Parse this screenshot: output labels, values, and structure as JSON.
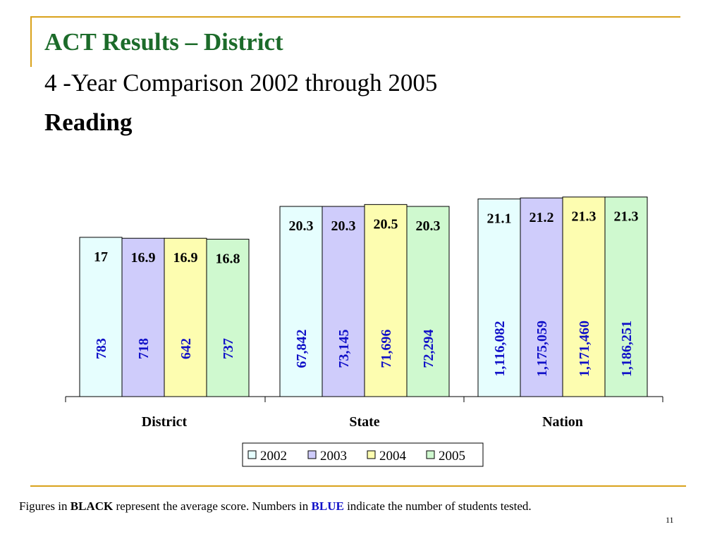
{
  "slide": {
    "title": "ACT Results – District",
    "subtitle": "4 -Year Comparison 2002 through 2005",
    "section": "Reading",
    "page_number": "11",
    "footnote": {
      "part1": "Figures in ",
      "black_word": "BLACK",
      "part2": " represent the average score.  Numbers in ",
      "blue_word": "BLUE",
      "part3": " indicate the number of students tested."
    },
    "colors": {
      "accent_line": "#D9A21B",
      "title_green": "#1C6B2A",
      "count_blue": "#1010C8"
    }
  },
  "chart_data": {
    "type": "bar",
    "categories": [
      "District",
      "State",
      "Nation"
    ],
    "series": [
      {
        "name": "2002",
        "color": "#E6FEFE",
        "values": [
          17,
          20.3,
          21.1
        ],
        "score_labels": [
          "17",
          "20.3",
          "21.1"
        ],
        "counts": [
          "783",
          "67,842",
          "1,116,082"
        ]
      },
      {
        "name": "2003",
        "color": "#CFCCFB",
        "values": [
          16.9,
          20.3,
          21.2
        ],
        "score_labels": [
          "16.9",
          "20.3",
          "21.2"
        ],
        "counts": [
          "718",
          "73,145",
          "1,175,059"
        ]
      },
      {
        "name": "2004",
        "color": "#FDFDB0",
        "values": [
          16.9,
          20.5,
          21.3
        ],
        "score_labels": [
          "16.9",
          "20.5",
          "21.3"
        ],
        "counts": [
          "642",
          "71,696",
          "1,171,460"
        ]
      },
      {
        "name": "2005",
        "color": "#CFF9CF",
        "values": [
          16.8,
          20.3,
          21.3
        ],
        "score_labels": [
          "16.8",
          "20.3",
          "21.3"
        ],
        "counts": [
          "737",
          "72,294",
          "1,186,251"
        ]
      }
    ],
    "legend_position": "bottom",
    "grid": false
  }
}
